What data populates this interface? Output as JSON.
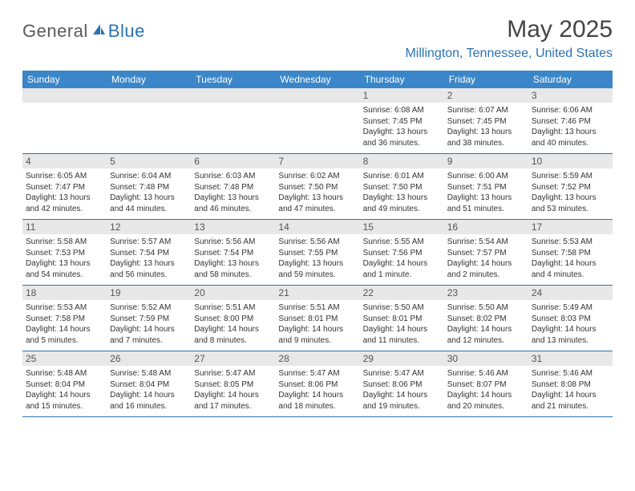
{
  "logo": {
    "word1": "General",
    "word2": "Blue"
  },
  "title": "May 2025",
  "location": "Millington, Tennessee, United States",
  "colors": {
    "header_bg": "#3a86c8",
    "accent": "#2a72b5",
    "daynum_bg": "#e8e8e8",
    "text": "#333333"
  },
  "weekdays": [
    "Sunday",
    "Monday",
    "Tuesday",
    "Wednesday",
    "Thursday",
    "Friday",
    "Saturday"
  ],
  "weeks": [
    [
      null,
      null,
      null,
      null,
      {
        "n": "1",
        "sr": "6:08 AM",
        "ss": "7:45 PM",
        "dl": "13 hours and 36 minutes."
      },
      {
        "n": "2",
        "sr": "6:07 AM",
        "ss": "7:45 PM",
        "dl": "13 hours and 38 minutes."
      },
      {
        "n": "3",
        "sr": "6:06 AM",
        "ss": "7:46 PM",
        "dl": "13 hours and 40 minutes."
      }
    ],
    [
      {
        "n": "4",
        "sr": "6:05 AM",
        "ss": "7:47 PM",
        "dl": "13 hours and 42 minutes."
      },
      {
        "n": "5",
        "sr": "6:04 AM",
        "ss": "7:48 PM",
        "dl": "13 hours and 44 minutes."
      },
      {
        "n": "6",
        "sr": "6:03 AM",
        "ss": "7:48 PM",
        "dl": "13 hours and 46 minutes."
      },
      {
        "n": "7",
        "sr": "6:02 AM",
        "ss": "7:50 PM",
        "dl": "13 hours and 47 minutes."
      },
      {
        "n": "8",
        "sr": "6:01 AM",
        "ss": "7:50 PM",
        "dl": "13 hours and 49 minutes."
      },
      {
        "n": "9",
        "sr": "6:00 AM",
        "ss": "7:51 PM",
        "dl": "13 hours and 51 minutes."
      },
      {
        "n": "10",
        "sr": "5:59 AM",
        "ss": "7:52 PM",
        "dl": "13 hours and 53 minutes."
      }
    ],
    [
      {
        "n": "11",
        "sr": "5:58 AM",
        "ss": "7:53 PM",
        "dl": "13 hours and 54 minutes."
      },
      {
        "n": "12",
        "sr": "5:57 AM",
        "ss": "7:54 PM",
        "dl": "13 hours and 56 minutes."
      },
      {
        "n": "13",
        "sr": "5:56 AM",
        "ss": "7:54 PM",
        "dl": "13 hours and 58 minutes."
      },
      {
        "n": "14",
        "sr": "5:56 AM",
        "ss": "7:55 PM",
        "dl": "13 hours and 59 minutes."
      },
      {
        "n": "15",
        "sr": "5:55 AM",
        "ss": "7:56 PM",
        "dl": "14 hours and 1 minute."
      },
      {
        "n": "16",
        "sr": "5:54 AM",
        "ss": "7:57 PM",
        "dl": "14 hours and 2 minutes."
      },
      {
        "n": "17",
        "sr": "5:53 AM",
        "ss": "7:58 PM",
        "dl": "14 hours and 4 minutes."
      }
    ],
    [
      {
        "n": "18",
        "sr": "5:53 AM",
        "ss": "7:58 PM",
        "dl": "14 hours and 5 minutes."
      },
      {
        "n": "19",
        "sr": "5:52 AM",
        "ss": "7:59 PM",
        "dl": "14 hours and 7 minutes."
      },
      {
        "n": "20",
        "sr": "5:51 AM",
        "ss": "8:00 PM",
        "dl": "14 hours and 8 minutes."
      },
      {
        "n": "21",
        "sr": "5:51 AM",
        "ss": "8:01 PM",
        "dl": "14 hours and 9 minutes."
      },
      {
        "n": "22",
        "sr": "5:50 AM",
        "ss": "8:01 PM",
        "dl": "14 hours and 11 minutes."
      },
      {
        "n": "23",
        "sr": "5:50 AM",
        "ss": "8:02 PM",
        "dl": "14 hours and 12 minutes."
      },
      {
        "n": "24",
        "sr": "5:49 AM",
        "ss": "8:03 PM",
        "dl": "14 hours and 13 minutes."
      }
    ],
    [
      {
        "n": "25",
        "sr": "5:48 AM",
        "ss": "8:04 PM",
        "dl": "14 hours and 15 minutes."
      },
      {
        "n": "26",
        "sr": "5:48 AM",
        "ss": "8:04 PM",
        "dl": "14 hours and 16 minutes."
      },
      {
        "n": "27",
        "sr": "5:47 AM",
        "ss": "8:05 PM",
        "dl": "14 hours and 17 minutes."
      },
      {
        "n": "28",
        "sr": "5:47 AM",
        "ss": "8:06 PM",
        "dl": "14 hours and 18 minutes."
      },
      {
        "n": "29",
        "sr": "5:47 AM",
        "ss": "8:06 PM",
        "dl": "14 hours and 19 minutes."
      },
      {
        "n": "30",
        "sr": "5:46 AM",
        "ss": "8:07 PM",
        "dl": "14 hours and 20 minutes."
      },
      {
        "n": "31",
        "sr": "5:46 AM",
        "ss": "8:08 PM",
        "dl": "14 hours and 21 minutes."
      }
    ]
  ],
  "labels": {
    "sunrise": "Sunrise: ",
    "sunset": "Sunset: ",
    "daylight": "Daylight: "
  }
}
